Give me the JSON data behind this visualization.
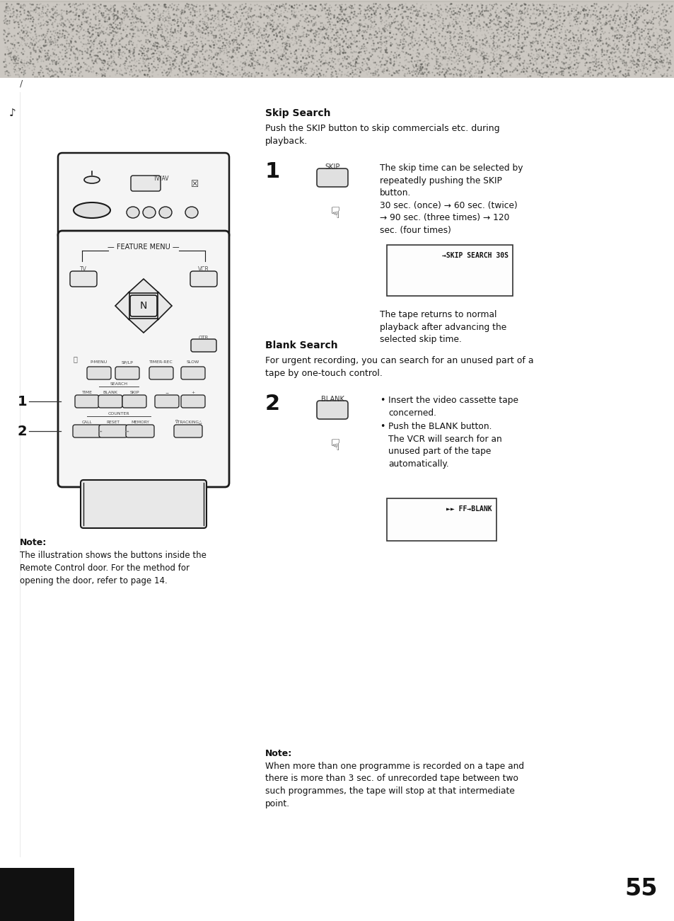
{
  "bg_color": "#c8c4be",
  "page_bg": "#ffffff",
  "page_number": "55",
  "skip_search_heading": "Skip Search",
  "skip_search_intro": "Push the SKIP button to skip commercials etc. during\nplayback.",
  "skip_step_num": "1",
  "skip_button_label": "SKIP",
  "skip_description": "The skip time can be selected by\nrepeatedly pushing the SKIP\nbutton.\n30 sec. (once) → 60 sec. (twice)\n→ 90 sec. (three times) → 120\nsec. (four times)",
  "skip_screen_text": "→SKIP SEARCH 30S",
  "skip_after_text": "The tape returns to normal\nplayback after advancing the\nselected skip time.",
  "blank_search_heading": "Blank Search",
  "blank_search_intro": "For urgent recording, you can search for an unused part of a\ntape by one-touch control.",
  "blank_step_num": "2",
  "blank_button_label": "BLANK",
  "blank_bullet1": "Insert the video cassette tape\nconcerned.",
  "blank_bullet2": "Push the BLANK button.\nThe VCR will search for an\nunused part of the tape\nautomatically.",
  "blank_screen_text": "►► FF→BLANK",
  "note_heading": "Note:",
  "note_text_left": "The illustration shows the buttons inside the\nRemote Control door. For the method for\nopening the door, refer to page 14.",
  "note_text_bottom": "When more than one programme is recorded on a tape and\nthere is more than 3 sec. of unrecorded tape between two\nsuch programmes, the tape will stop at that intermediate\npoint."
}
